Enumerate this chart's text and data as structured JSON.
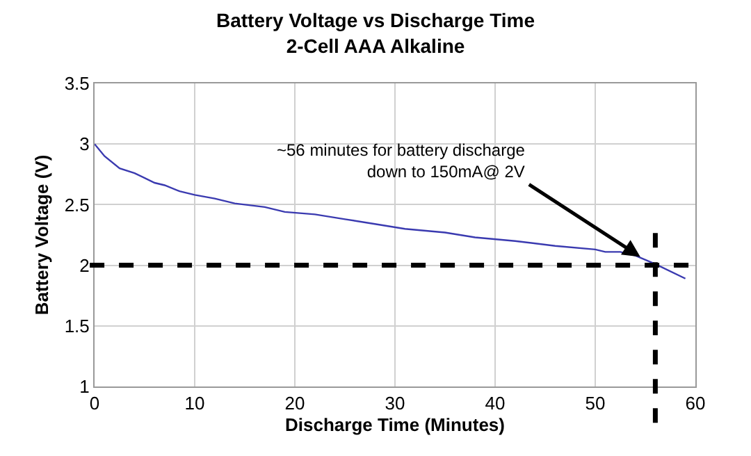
{
  "chart_data": {
    "type": "line",
    "title": "Battery Voltage vs Discharge Time",
    "subtitle": "2-Cell AAA Alkaline",
    "xlabel": "Discharge Time (Minutes)",
    "ylabel": "Battery Voltage (V)",
    "xlim": [
      0,
      60
    ],
    "xticks": [
      0,
      10,
      20,
      30,
      40,
      50,
      60
    ],
    "ylim": [
      1,
      3.5
    ],
    "yticks": [
      1,
      1.5,
      2,
      2.5,
      3,
      3.5
    ],
    "grid": true,
    "marker": "none",
    "line_style": "solid",
    "x": [
      0,
      1,
      2.5,
      4,
      6,
      7,
      8.5,
      10,
      12,
      14,
      17,
      19,
      22,
      25,
      28,
      31,
      35,
      38,
      42,
      46,
      50,
      51,
      52.5,
      54,
      56,
      59
    ],
    "series": [
      {
        "color": "#3a3ab0",
        "values": [
          3.0,
          2.9,
          2.8,
          2.76,
          2.68,
          2.66,
          2.61,
          2.58,
          2.55,
          2.51,
          2.48,
          2.44,
          2.42,
          2.38,
          2.34,
          2.3,
          2.27,
          2.23,
          2.2,
          2.16,
          2.13,
          2.11,
          2.11,
          2.08,
          2.01,
          1.89
        ]
      }
    ],
    "ref_lines": [
      {
        "axis": "y",
        "value": 2,
        "color": "#000000",
        "line_style": "dashed"
      },
      {
        "axis": "x",
        "value": 56,
        "color": "#000000",
        "line_style": "dashed"
      }
    ],
    "annotations": [
      {
        "text": "~56 minutes for battery discharge\ndown to 150mA@ 2V",
        "x": 54.5,
        "y": 2.07
      }
    ]
  }
}
